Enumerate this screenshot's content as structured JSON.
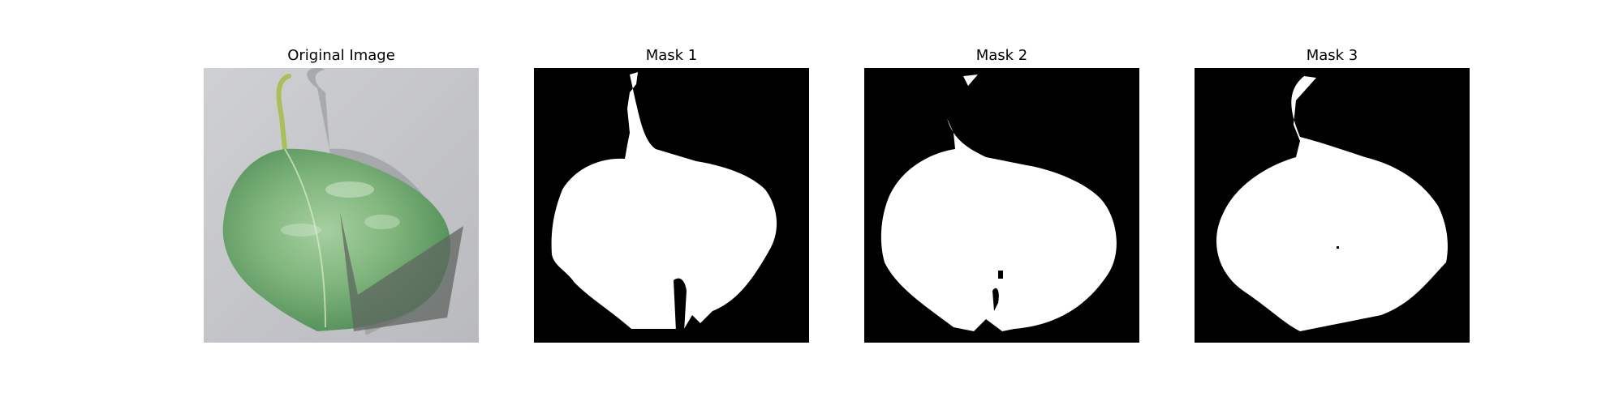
{
  "panels": [
    {
      "title": "Original Image",
      "kind": "photo"
    },
    {
      "title": "Mask 1",
      "kind": "mask"
    },
    {
      "title": "Mask 2",
      "kind": "mask"
    },
    {
      "title": "Mask 3",
      "kind": "mask"
    }
  ],
  "colors": {
    "page_background": "#ffffff",
    "mask_background": "#000000",
    "mask_foreground": "#ffffff",
    "photo_background": "#c4c5c9",
    "leaf_green": "#6fa56f",
    "stem_green": "#a8bf5a",
    "occluder_gray": "#5f6660"
  }
}
